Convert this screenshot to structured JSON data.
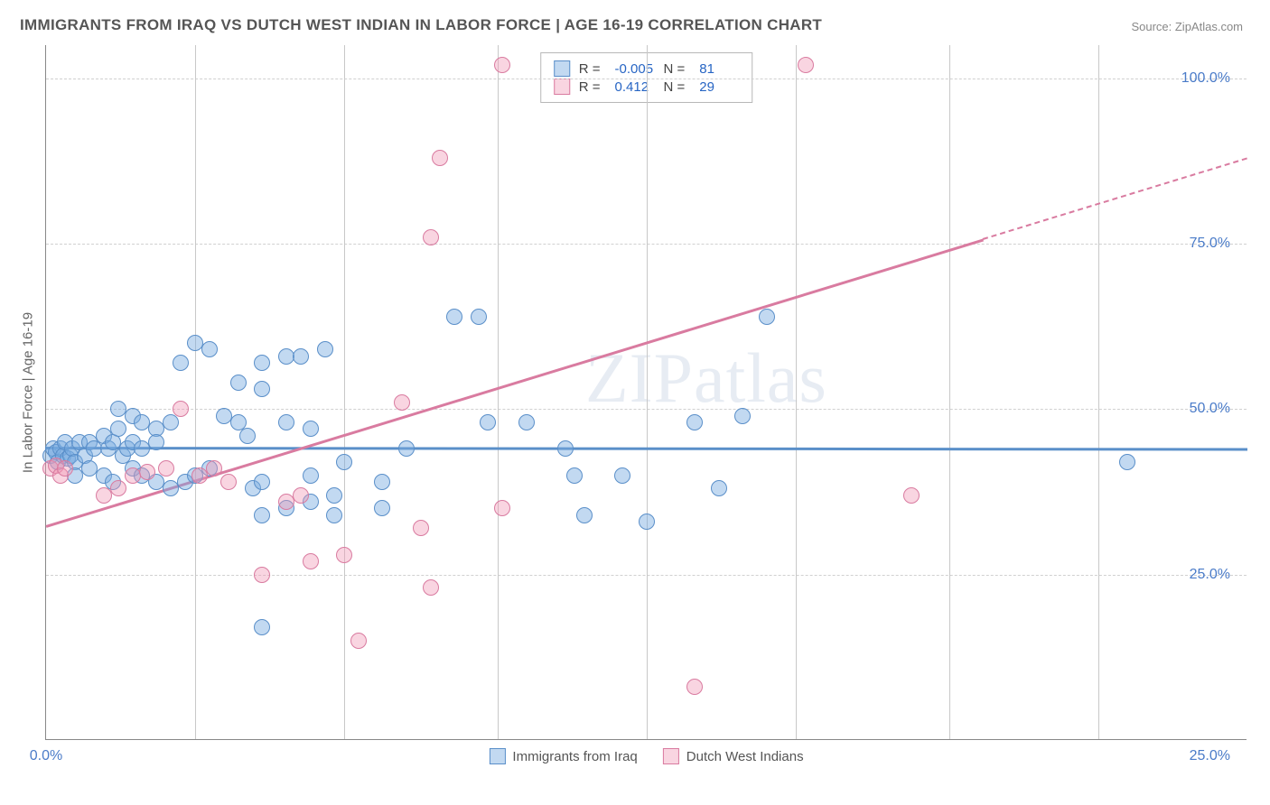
{
  "title": "IMMIGRANTS FROM IRAQ VS DUTCH WEST INDIAN IN LABOR FORCE | AGE 16-19 CORRELATION CHART",
  "source": "Source: ZipAtlas.com",
  "watermark": "ZIPatlas",
  "ylabel": "In Labor Force | Age 16-19",
  "chart": {
    "type": "scatter",
    "xlim": [
      0,
      25
    ],
    "ylim": [
      0,
      105
    ],
    "xticks": [
      0,
      25
    ],
    "xtick_labels": [
      "0.0%",
      "25.0%"
    ],
    "yticks": [
      25,
      50,
      75,
      100
    ],
    "ytick_labels": [
      "25.0%",
      "50.0%",
      "75.0%",
      "100.0%"
    ],
    "grid_color": "#d0d0d0",
    "vgrid_positions": [
      3.1,
      6.2,
      9.4,
      12.5,
      15.6,
      18.8,
      21.9
    ],
    "background_color": "#ffffff",
    "point_radius": 9,
    "series": [
      {
        "name": "Immigrants from Iraq",
        "short": "iraq",
        "fill": "rgba(120,170,225,0.45)",
        "stroke": "#5a8fc9",
        "r": -0.005,
        "n": 81,
        "trend": {
          "x1": 0,
          "y1": 44.3,
          "x2": 25,
          "y2": 44.1,
          "solid_until": 25
        },
        "points": [
          [
            0.1,
            43
          ],
          [
            0.15,
            44
          ],
          [
            0.2,
            43.5
          ],
          [
            0.25,
            42
          ],
          [
            0.3,
            44
          ],
          [
            0.35,
            43
          ],
          [
            0.4,
            45
          ],
          [
            0.45,
            42.5
          ],
          [
            0.5,
            43
          ],
          [
            0.55,
            44
          ],
          [
            0.6,
            42
          ],
          [
            0.7,
            45
          ],
          [
            0.8,
            43
          ],
          [
            0.9,
            45
          ],
          [
            1.0,
            44
          ],
          [
            1.2,
            46
          ],
          [
            1.3,
            44
          ],
          [
            1.4,
            45
          ],
          [
            1.5,
            47
          ],
          [
            1.6,
            43
          ],
          [
            1.7,
            44
          ],
          [
            1.8,
            45
          ],
          [
            0.6,
            40
          ],
          [
            0.9,
            41
          ],
          [
            1.2,
            40
          ],
          [
            1.4,
            39
          ],
          [
            1.8,
            41
          ],
          [
            2.0,
            40
          ],
          [
            1.5,
            50
          ],
          [
            1.8,
            49
          ],
          [
            2.0,
            48
          ],
          [
            2.3,
            47
          ],
          [
            2.6,
            48
          ],
          [
            2.0,
            44
          ],
          [
            2.3,
            45
          ],
          [
            2.3,
            39
          ],
          [
            2.6,
            38
          ],
          [
            2.9,
            39
          ],
          [
            3.1,
            40
          ],
          [
            3.4,
            41
          ],
          [
            3.7,
            49
          ],
          [
            4.0,
            48
          ],
          [
            4.3,
            38
          ],
          [
            4.5,
            39
          ],
          [
            4.2,
            46
          ],
          [
            4.5,
            34
          ],
          [
            3.1,
            60
          ],
          [
            3.4,
            59
          ],
          [
            2.8,
            57
          ],
          [
            4.5,
            57
          ],
          [
            5.0,
            58
          ],
          [
            5.3,
            58
          ],
          [
            5.8,
            59
          ],
          [
            4.0,
            54
          ],
          [
            4.5,
            53
          ],
          [
            5.0,
            48
          ],
          [
            5.5,
            47
          ],
          [
            6.0,
            37
          ],
          [
            6.0,
            34
          ],
          [
            5.5,
            40
          ],
          [
            6.2,
            42
          ],
          [
            7.0,
            39
          ],
          [
            7.5,
            44
          ],
          [
            7.0,
            35
          ],
          [
            8.5,
            64
          ],
          [
            9.0,
            64
          ],
          [
            9.2,
            48
          ],
          [
            10.0,
            48
          ],
          [
            10.8,
            44
          ],
          [
            11.0,
            40
          ],
          [
            11.2,
            34
          ],
          [
            12.0,
            40
          ],
          [
            12.5,
            33
          ],
          [
            13.5,
            48
          ],
          [
            14.0,
            38
          ],
          [
            15.0,
            64
          ],
          [
            14.5,
            49
          ],
          [
            22.5,
            42
          ],
          [
            4.5,
            17
          ],
          [
            5.0,
            35
          ],
          [
            5.5,
            36
          ]
        ]
      },
      {
        "name": "Dutch West Indians",
        "short": "dutch",
        "fill": "rgba(240,150,180,0.40)",
        "stroke": "#d97ba0",
        "r": 0.412,
        "n": 29,
        "trend": {
          "x1": 0,
          "y1": 32.5,
          "x2": 25,
          "y2": 88,
          "solid_until": 19.5
        },
        "points": [
          [
            0.1,
            41
          ],
          [
            0.2,
            41.5
          ],
          [
            0.3,
            40
          ],
          [
            0.4,
            41
          ],
          [
            1.2,
            37
          ],
          [
            1.5,
            38
          ],
          [
            1.8,
            40
          ],
          [
            2.1,
            40.5
          ],
          [
            2.5,
            41
          ],
          [
            2.8,
            50
          ],
          [
            3.2,
            40
          ],
          [
            3.5,
            41
          ],
          [
            3.8,
            39
          ],
          [
            4.5,
            25
          ],
          [
            5.0,
            36
          ],
          [
            5.3,
            37
          ],
          [
            5.5,
            27
          ],
          [
            6.2,
            28
          ],
          [
            7.4,
            51
          ],
          [
            7.8,
            32
          ],
          [
            8.0,
            76
          ],
          [
            8.0,
            23
          ],
          [
            8.2,
            88
          ],
          [
            9.5,
            35
          ],
          [
            9.5,
            102
          ],
          [
            13.5,
            8
          ],
          [
            15.8,
            102
          ],
          [
            18.0,
            37
          ],
          [
            6.5,
            15
          ]
        ]
      }
    ]
  },
  "legend_top": {
    "r_label": "R =",
    "n_label": "N ="
  },
  "legend_bottom": [
    {
      "label": "Immigrants from Iraq",
      "fill": "rgba(120,170,225,0.45)",
      "stroke": "#5a8fc9"
    },
    {
      "label": "Dutch West Indians",
      "fill": "rgba(240,150,180,0.40)",
      "stroke": "#d97ba0"
    }
  ]
}
